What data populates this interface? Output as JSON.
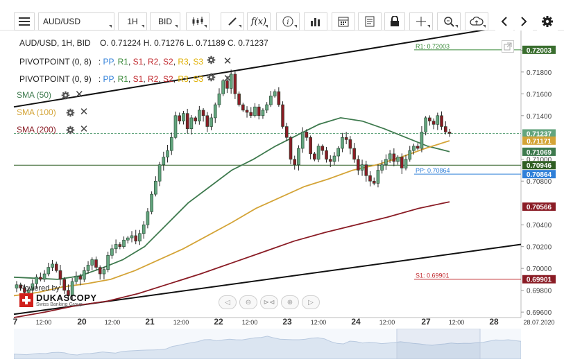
{
  "toolbar": {
    "symbol": "AUD/USD",
    "timeframe": "1H",
    "price_side": "BID",
    "icons": [
      "menu-icon",
      "candlestick-icon",
      "pencil-icon",
      "function-icon",
      "info-icon",
      "bar-indicator-icon",
      "calendar-icon",
      "notes-icon",
      "lock-icon",
      "crosshair-icon",
      "zoom-icon",
      "cloud-upload-icon",
      "chevron-left-icon",
      "chevron-right-icon",
      "gear-icon"
    ]
  },
  "header": {
    "title": "AUD/USD, 1H, BID",
    "ohlc": "O. 0.71224 H. 0.71276 L. 0.71189 C. 0.71237"
  },
  "pivot_indicators": [
    {
      "label": "PIVOTPOINT (0, 8)",
      "levels": [
        "PP",
        "R1",
        "S1",
        "R2",
        "S2",
        "R3",
        "S3"
      ]
    },
    {
      "label": "PIVOTPOINT (0, 9)",
      "levels": [
        "PP",
        "R1",
        "S1",
        "R2",
        "S2",
        "R3",
        "S3"
      ]
    }
  ],
  "sma_indicators": [
    {
      "label": "SMA (50)",
      "color": "#3e7a4e"
    },
    {
      "label": "SMA (100)",
      "color": "#d4a437"
    },
    {
      "label": "SMA (200)",
      "color": "#8a1c25"
    }
  ],
  "pivot_colors": {
    "PP": "#2f7fd8",
    "R1": "#3a8a3a",
    "S1": "#c0282d",
    "R2": "#c0282d",
    "S2": "#c0282d",
    "R3": "#e0b000",
    "S3": "#e0b000"
  },
  "branding": {
    "powered_by": "Powered by",
    "name": "DUKASCOPY",
    "sub": "Swiss Banking Group"
  },
  "chart_data": {
    "type": "candlestick",
    "instrument": "AUD/USD",
    "interval": "1H",
    "ylim": [
      0.6955,
      0.7218
    ],
    "y_ticks": [
      "0.72000",
      "0.71800",
      "0.71600",
      "0.71400",
      "0.71000",
      "0.70800",
      "0.70400",
      "0.70200",
      "0.70000",
      "0.69800",
      "0.69600"
    ],
    "x_labels": [
      "7",
      "12:00",
      "20",
      "12:00",
      "21",
      "12:00",
      "22",
      "12:00",
      "23",
      "12:00",
      "24",
      "12:00",
      "27",
      "12:00",
      "28",
      "28.07.2020"
    ],
    "price_labels": [
      {
        "text": "0.72003",
        "value": 0.72003,
        "color": "#3a6e2f"
      },
      {
        "text": "0.71237",
        "value": 0.71237,
        "color": "#63a57e"
      },
      {
        "text": "0.71171",
        "value": 0.71171,
        "color": "#d4a437"
      },
      {
        "text": "0.71069",
        "value": 0.71069,
        "color": "#3e7a4e"
      },
      {
        "text": "0.70946",
        "value": 0.70946,
        "color": "#2f5e23"
      },
      {
        "text": "0.70864",
        "value": 0.70864,
        "color": "#2f7fd8"
      },
      {
        "text": "0.70566",
        "value": 0.70566,
        "color": "#8a1c25"
      },
      {
        "text": "0.69901",
        "value": 0.69901,
        "color": "#8a1c25"
      }
    ],
    "pivot_annotations": [
      {
        "text": "R1: 0.72003",
        "value": 0.72003,
        "color": "#3a8a3a"
      },
      {
        "text": "PP: 0.70864",
        "value": 0.70864,
        "color": "#2f7fd8"
      },
      {
        "text": "S1: 0.69901",
        "value": 0.69901,
        "color": "#c0282d"
      }
    ],
    "close_series": [
      0.6985,
      0.6982,
      0.6978,
      0.698,
      0.6986,
      0.6992,
      0.699,
      0.6995,
      0.7001,
      0.7004,
      0.6998,
      0.699,
      0.698,
      0.6975,
      0.6988,
      0.6993,
      0.699,
      0.6998,
      0.7003,
      0.7008,
      0.7001,
      0.6995,
      0.6999,
      0.7012,
      0.7018,
      0.7022,
      0.702,
      0.7026,
      0.7028,
      0.703,
      0.7025,
      0.7032,
      0.704,
      0.7052,
      0.7068,
      0.708,
      0.7095,
      0.7102,
      0.7108,
      0.712,
      0.714,
      0.7135,
      0.7142,
      0.7128,
      0.7138,
      0.7135,
      0.7145,
      0.714,
      0.713,
      0.7138,
      0.715,
      0.716,
      0.7172,
      0.7165,
      0.7178,
      0.716,
      0.715,
      0.7145,
      0.7143,
      0.714,
      0.7148,
      0.714,
      0.7145,
      0.715,
      0.7158,
      0.7162,
      0.715,
      0.713,
      0.712,
      0.71,
      0.7095,
      0.711,
      0.7125,
      0.712,
      0.7105,
      0.71,
      0.7112,
      0.7108,
      0.71,
      0.7098,
      0.7103,
      0.711,
      0.712,
      0.7118,
      0.711,
      0.71,
      0.709,
      0.7095,
      0.7085,
      0.708,
      0.7078,
      0.709,
      0.7095,
      0.71,
      0.7105,
      0.7098,
      0.7102,
      0.7092,
      0.71,
      0.7108,
      0.7112,
      0.711,
      0.7125,
      0.7138,
      0.7135,
      0.7132,
      0.714,
      0.713,
      0.7125,
      0.71237
    ],
    "sma50": [
      0.6992,
      0.6991,
      0.699,
      0.6993,
      0.7,
      0.7008,
      0.702,
      0.704,
      0.706,
      0.7075,
      0.709,
      0.71,
      0.7112,
      0.7122,
      0.7132,
      0.7138,
      0.7135,
      0.7128,
      0.712,
      0.7112,
      0.7107
    ],
    "sma100": [
      0.6975,
      0.6978,
      0.6983,
      0.6986,
      0.699,
      0.6998,
      0.7008,
      0.7018,
      0.703,
      0.7042,
      0.7055,
      0.7065,
      0.7075,
      0.7082,
      0.709,
      0.7095,
      0.7102,
      0.711,
      0.7117
    ],
    "sma200": [
      0.6955,
      0.696,
      0.6966,
      0.697,
      0.6977,
      0.6986,
      0.6995,
      0.7005,
      0.7015,
      0.7025,
      0.7033,
      0.704,
      0.7047,
      0.7055,
      0.7061
    ],
    "trendlines": [
      {
        "name": "upper",
        "from": [
          0,
          0.7148
        ],
        "to": [
          1,
          0.7224
        ]
      },
      {
        "name": "lower",
        "from": [
          0,
          0.6958
        ],
        "to": [
          1,
          0.7022
        ]
      }
    ]
  }
}
